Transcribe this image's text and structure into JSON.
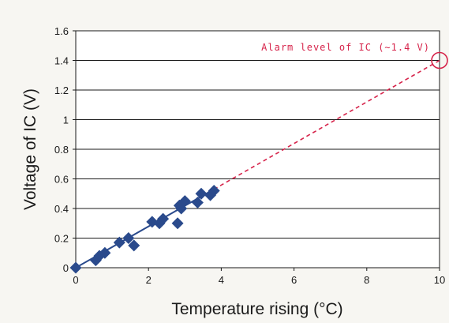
{
  "chart_data": {
    "type": "scatter",
    "title": "",
    "xlabel": "Temperature rising (°C)",
    "ylabel": "Voltage of IC (V)",
    "xlim": [
      0,
      10
    ],
    "ylim": [
      0,
      1.6
    ],
    "x_ticks": [
      0,
      2,
      4,
      6,
      8,
      10
    ],
    "y_ticks": [
      0,
      0.2,
      0.4,
      0.6,
      0.8,
      1,
      1.2,
      1.4,
      1.6
    ],
    "grid": "horizontal",
    "points": [
      {
        "x": 0,
        "y": 0
      },
      {
        "x": 0.55,
        "y": 0.05
      },
      {
        "x": 0.65,
        "y": 0.08
      },
      {
        "x": 0.8,
        "y": 0.1
      },
      {
        "x": 1.2,
        "y": 0.17
      },
      {
        "x": 1.45,
        "y": 0.2
      },
      {
        "x": 1.6,
        "y": 0.15
      },
      {
        "x": 2.1,
        "y": 0.31
      },
      {
        "x": 2.3,
        "y": 0.3
      },
      {
        "x": 2.4,
        "y": 0.33
      },
      {
        "x": 2.8,
        "y": 0.3
      },
      {
        "x": 2.85,
        "y": 0.42
      },
      {
        "x": 2.9,
        "y": 0.4
      },
      {
        "x": 3.0,
        "y": 0.45
      },
      {
        "x": 3.35,
        "y": 0.44
      },
      {
        "x": 3.45,
        "y": 0.5
      },
      {
        "x": 3.7,
        "y": 0.49
      },
      {
        "x": 3.8,
        "y": 0.52
      }
    ],
    "fit_solid": {
      "x": [
        0,
        3.8
      ],
      "y": [
        0,
        0.53
      ]
    },
    "fit_dashed": {
      "x": [
        3.8,
        10
      ],
      "y": [
        0.53,
        1.4
      ]
    },
    "target_point": {
      "x": 10,
      "y": 1.4
    },
    "annotation": "Alarm level of IC (∼1.4 V)",
    "colors": {
      "marker": "#2a4a8c",
      "fit_line": "#2a4a8c",
      "alarm": "#d6234a",
      "grid": "#1a1a1a",
      "plot_bg": "#ffffff"
    }
  }
}
